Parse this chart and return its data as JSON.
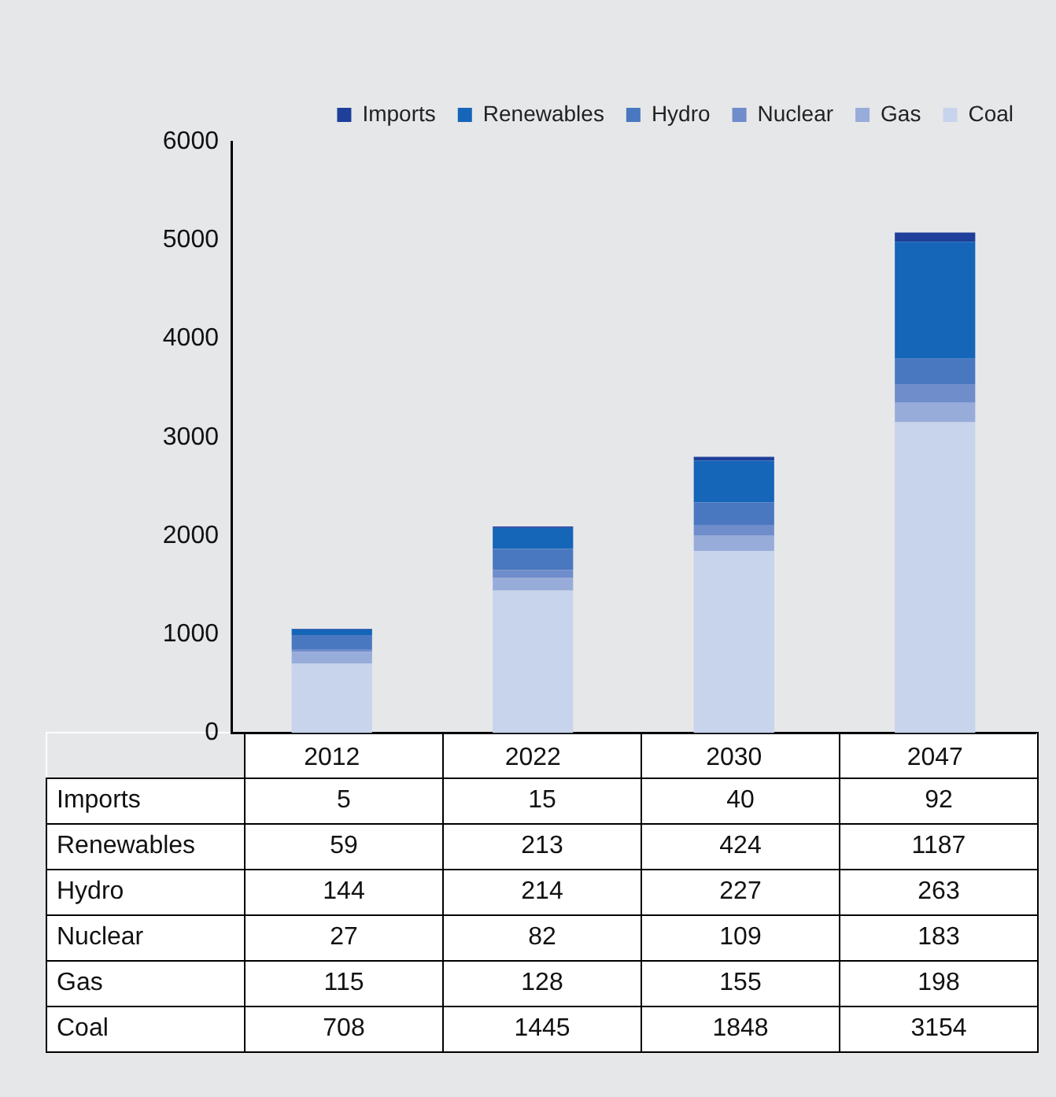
{
  "chart_data": {
    "type": "bar",
    "stacked": true,
    "categories": [
      "2012",
      "2022",
      "2030",
      "2047"
    ],
    "series": [
      {
        "name": "Coal",
        "color": "#c8d3ec",
        "values": [
          708,
          1445,
          1848,
          3154
        ]
      },
      {
        "name": "Gas",
        "color": "#98acda",
        "values": [
          115,
          128,
          155,
          198
        ]
      },
      {
        "name": "Nuclear",
        "color": "#6f8ccb",
        "values": [
          27,
          82,
          109,
          183
        ]
      },
      {
        "name": "Hydro",
        "color": "#4a78c0",
        "values": [
          144,
          214,
          227,
          263
        ]
      },
      {
        "name": "Renewables",
        "color": "#1565b8",
        "values": [
          59,
          213,
          424,
          1187
        ]
      },
      {
        "name": "Imports",
        "color": "#1e3f9a",
        "values": [
          5,
          15,
          40,
          92
        ]
      }
    ],
    "ylim": [
      0,
      6000
    ],
    "yticks": [
      0,
      1000,
      2000,
      3000,
      4000,
      5000,
      6000
    ],
    "grid": false,
    "legend": "top",
    "data_labels": true
  }
}
